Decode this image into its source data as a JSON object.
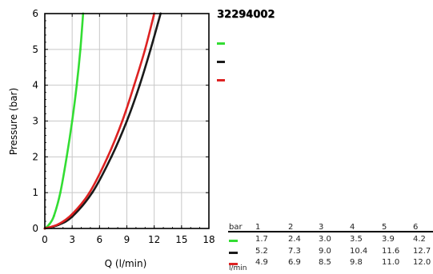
{
  "title": "32294002",
  "chart_data": {
    "type": "line",
    "xlabel": "Q (l/min)",
    "ylabel": "Pressure (bar)",
    "xlim": [
      0,
      18
    ],
    "ylim": [
      0,
      6
    ],
    "xticks": [
      "0",
      "3",
      "6",
      "9",
      "12",
      "15",
      "18"
    ],
    "yticks": [
      "0",
      "1",
      "2",
      "3",
      "4",
      "5",
      "6"
    ],
    "grid": true,
    "series": [
      {
        "color": "#33dd33",
        "points": [
          [
            0,
            0
          ],
          [
            0.5,
            0.12
          ],
          [
            1.0,
            0.35
          ],
          [
            1.7,
            1
          ],
          [
            2.4,
            2
          ],
          [
            3.0,
            3
          ],
          [
            3.5,
            4
          ],
          [
            3.9,
            5
          ],
          [
            4.2,
            6
          ]
        ]
      },
      {
        "color": "#1a1a1a",
        "points": [
          [
            0,
            0
          ],
          [
            1.5,
            0.1
          ],
          [
            3.0,
            0.33
          ],
          [
            5.2,
            1
          ],
          [
            7.3,
            2
          ],
          [
            9.0,
            3
          ],
          [
            10.4,
            4
          ],
          [
            11.6,
            5
          ],
          [
            12.7,
            6
          ]
        ]
      },
      {
        "color": "#dd2222",
        "points": [
          [
            0,
            0
          ],
          [
            1.5,
            0.12
          ],
          [
            3.0,
            0.4
          ],
          [
            4.9,
            1
          ],
          [
            6.9,
            2
          ],
          [
            8.5,
            3
          ],
          [
            9.8,
            4
          ],
          [
            11.0,
            5
          ],
          [
            12.0,
            6
          ]
        ]
      }
    ]
  },
  "table": {
    "bar_label": "bar",
    "unit_label": "l/min",
    "pressures": [
      "1",
      "2",
      "3",
      "4",
      "5",
      "6"
    ],
    "rows": [
      {
        "color": "#33dd33",
        "values": [
          "1.7",
          "2.4",
          "3.0",
          "3.5",
          "3.9",
          "4.2"
        ]
      },
      {
        "color": "#1a1a1a",
        "values": [
          "5.2",
          "7.3",
          "9.0",
          "10.4",
          "11.6",
          "12.7"
        ]
      },
      {
        "color": "#dd2222",
        "values": [
          "4.9",
          "6.9",
          "8.5",
          "9.8",
          "11.0",
          "12.0"
        ]
      }
    ]
  }
}
